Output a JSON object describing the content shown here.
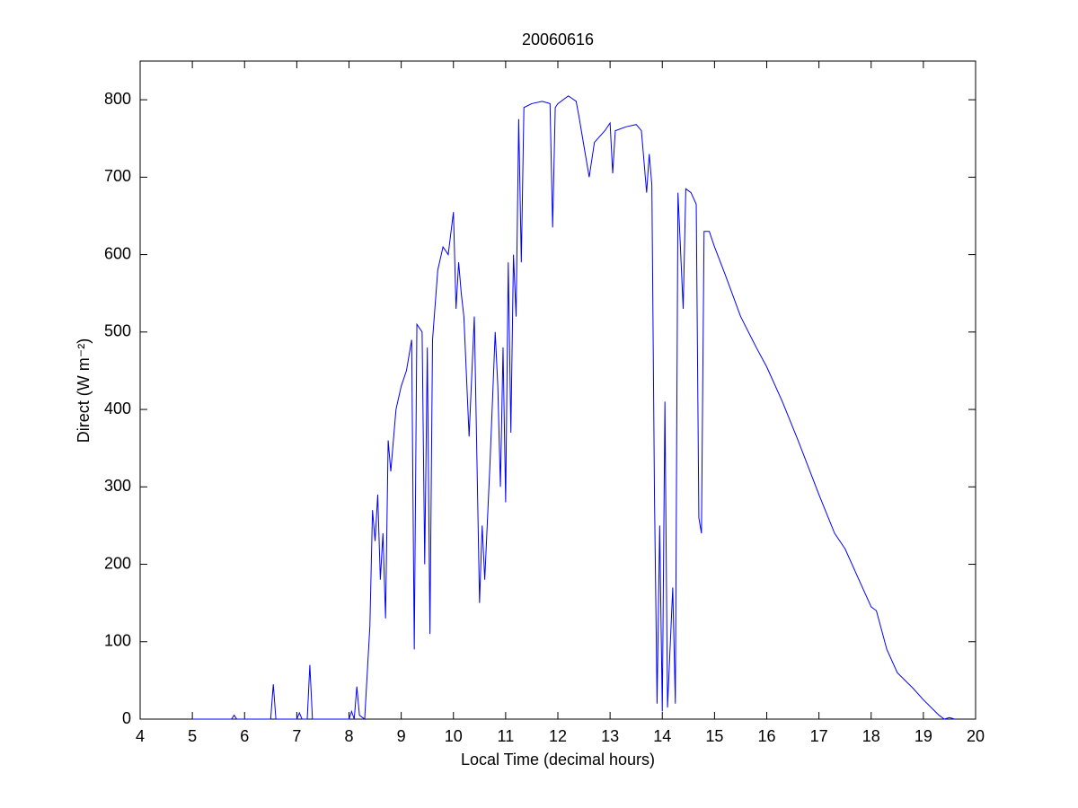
{
  "chart_data": {
    "type": "line",
    "title": "20060616",
    "xlabel": "Local Time (decimal hours)",
    "ylabel": "Direct (W m⁻²)",
    "color": "#0000ff",
    "x": [
      5.0,
      5.75,
      5.8,
      5.85,
      6.5,
      6.55,
      6.6,
      7.0,
      7.05,
      7.1,
      7.2,
      7.25,
      7.3,
      8.0,
      8.05,
      8.1,
      8.15,
      8.2,
      8.3,
      8.35,
      8.4,
      8.45,
      8.5,
      8.55,
      8.6,
      8.65,
      8.7,
      8.75,
      8.8,
      8.9,
      9.0,
      9.1,
      9.2,
      9.25,
      9.3,
      9.4,
      9.45,
      9.5,
      9.55,
      9.6,
      9.7,
      9.8,
      9.9,
      10.0,
      10.05,
      10.1,
      10.15,
      10.2,
      10.3,
      10.4,
      10.5,
      10.55,
      10.6,
      10.7,
      10.8,
      10.85,
      10.9,
      10.95,
      11.0,
      11.05,
      11.1,
      11.15,
      11.2,
      11.25,
      11.3,
      11.35,
      11.5,
      11.7,
      11.85,
      11.9,
      11.95,
      12.0,
      12.2,
      12.35,
      12.4,
      12.5,
      12.6,
      12.7,
      12.9,
      13.0,
      13.05,
      13.1,
      13.3,
      13.5,
      13.6,
      13.65,
      13.7,
      13.75,
      13.8,
      13.85,
      13.9,
      13.95,
      14.0,
      14.05,
      14.1,
      14.2,
      14.25,
      14.3,
      14.4,
      14.45,
      14.55,
      14.65,
      14.7,
      14.75,
      14.8,
      14.9,
      15.0,
      15.2,
      15.5,
      15.8,
      16.0,
      16.3,
      16.6,
      17.0,
      17.3,
      17.5,
      17.7,
      18.0,
      18.1,
      18.3,
      18.5,
      18.8,
      19.0,
      19.3,
      19.4,
      19.5,
      19.6
    ],
    "values": [
      0,
      0,
      5,
      0,
      0,
      45,
      0,
      0,
      8,
      0,
      0,
      70,
      0,
      0,
      10,
      0,
      42,
      5,
      0,
      60,
      120,
      270,
      230,
      290,
      180,
      240,
      130,
      360,
      320,
      400,
      430,
      450,
      490,
      90,
      510,
      500,
      200,
      480,
      110,
      490,
      580,
      610,
      600,
      655,
      530,
      590,
      550,
      520,
      365,
      520,
      150,
      250,
      180,
      330,
      500,
      430,
      300,
      480,
      280,
      590,
      370,
      600,
      520,
      775,
      590,
      790,
      795,
      798,
      795,
      635,
      790,
      795,
      805,
      798,
      780,
      740,
      700,
      745,
      760,
      770,
      705,
      760,
      765,
      768,
      760,
      720,
      680,
      730,
      690,
      290,
      20,
      250,
      10,
      410,
      15,
      170,
      20,
      680,
      530,
      685,
      680,
      665,
      260,
      240,
      630,
      630,
      610,
      575,
      520,
      480,
      455,
      410,
      360,
      290,
      240,
      220,
      190,
      145,
      140,
      90,
      60,
      40,
      25,
      5,
      0,
      2,
      0
    ],
    "xlim": [
      4,
      20
    ],
    "ylim": [
      0,
      850
    ],
    "xticks": [
      4,
      5,
      6,
      7,
      8,
      9,
      10,
      11,
      12,
      13,
      14,
      15,
      16,
      17,
      18,
      19,
      20
    ],
    "yticks": [
      0,
      100,
      200,
      300,
      400,
      500,
      600,
      700,
      800
    ]
  }
}
